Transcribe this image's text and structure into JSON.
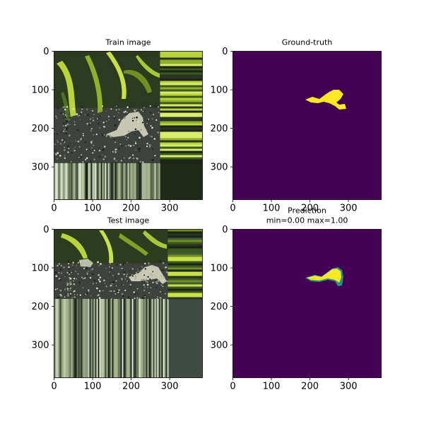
{
  "panels": [
    {
      "id": "train",
      "title_lines": [
        "Train image"
      ],
      "x_ticks": [
        0,
        100,
        200,
        300
      ],
      "y_ticks": [
        0,
        100,
        200,
        300
      ],
      "image": "photo-train",
      "crop": {
        "width": 275,
        "height": 290
      }
    },
    {
      "id": "gt",
      "title_lines": [
        "Ground-truth"
      ],
      "x_ticks": [
        0,
        100,
        200,
        300
      ],
      "y_ticks": [
        0,
        100,
        200,
        300
      ],
      "image": "mask-gt"
    },
    {
      "id": "test",
      "title_lines": [
        "Test image"
      ],
      "x_ticks": [
        0,
        100,
        200,
        300
      ],
      "y_ticks": [
        0,
        100,
        200,
        300
      ],
      "image": "photo-test",
      "crop": {
        "width": 295,
        "height": 180
      }
    },
    {
      "id": "pred",
      "title_lines": [
        "Prediction",
        "min=0.00 max=1.00"
      ],
      "x_ticks": [
        0,
        100,
        200,
        300
      ],
      "y_ticks": [
        0,
        100,
        200,
        300
      ],
      "image": "mask-pred"
    }
  ],
  "extent": [
    0,
    385
  ],
  "colors": {
    "mask_bg": "#440154",
    "mask_fg": "#fde725",
    "mask_edge": "#21918c",
    "gravel": "#3e423d",
    "plant_dark": "#3d5a1e",
    "plant_light": "#b9d43a",
    "frog": "#c7c7b3"
  }
}
